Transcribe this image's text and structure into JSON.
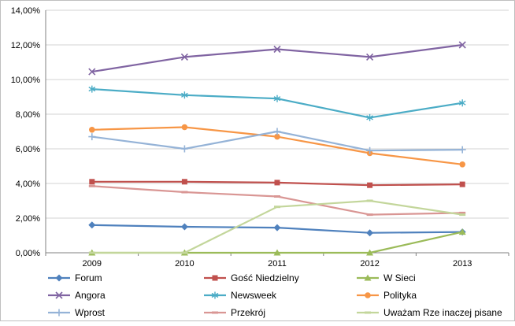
{
  "chart_data": {
    "type": "line",
    "x": [
      "2009",
      "2010",
      "2011",
      "2012",
      "2013"
    ],
    "ylim": [
      0,
      14
    ],
    "ytick_step": 2,
    "ytick_labels": [
      "0,00%",
      "2,00%",
      "4,00%",
      "6,00%",
      "8,00%",
      "10,00%",
      "12,00%",
      "14,00%"
    ],
    "grid": true,
    "legend_position": "bottom",
    "colors": {
      "axis": "#808080",
      "gridline": "#d3d3d3",
      "background": "#ffffff"
    },
    "series": [
      {
        "name": "Forum",
        "color": "#4F81BD",
        "marker": "diamond",
        "values": [
          1.6,
          1.5,
          1.45,
          1.15,
          1.2
        ]
      },
      {
        "name": "Gość Niedzielny",
        "color": "#C0504D",
        "marker": "square",
        "values": [
          4.1,
          4.1,
          4.05,
          3.9,
          3.95
        ]
      },
      {
        "name": "W Sieci",
        "color": "#9BBB59",
        "marker": "triangle",
        "values": [
          0,
          0,
          0,
          0,
          1.2
        ]
      },
      {
        "name": "Angora",
        "color": "#8064A2",
        "marker": "x",
        "values": [
          10.45,
          11.3,
          11.75,
          11.3,
          12.0
        ]
      },
      {
        "name": "Newsweek",
        "color": "#4BACC6",
        "marker": "asterisk",
        "values": [
          9.45,
          9.1,
          8.9,
          7.8,
          8.65
        ]
      },
      {
        "name": "Polityka",
        "color": "#F79646",
        "marker": "circle",
        "values": [
          7.1,
          7.25,
          6.7,
          5.75,
          5.1
        ]
      },
      {
        "name": "Wprost",
        "color": "#95B3D7",
        "marker": "plus",
        "values": [
          6.7,
          6.0,
          7.0,
          5.9,
          5.95
        ]
      },
      {
        "name": "Przekrój",
        "color": "#D99694",
        "marker": "dash",
        "values": [
          3.85,
          3.5,
          3.25,
          2.2,
          2.3
        ]
      },
      {
        "name": "Uważam Rze inaczej pisane",
        "color": "#C3D69B",
        "marker": "dash",
        "values": [
          0,
          0,
          2.65,
          3.0,
          2.2
        ]
      }
    ]
  }
}
